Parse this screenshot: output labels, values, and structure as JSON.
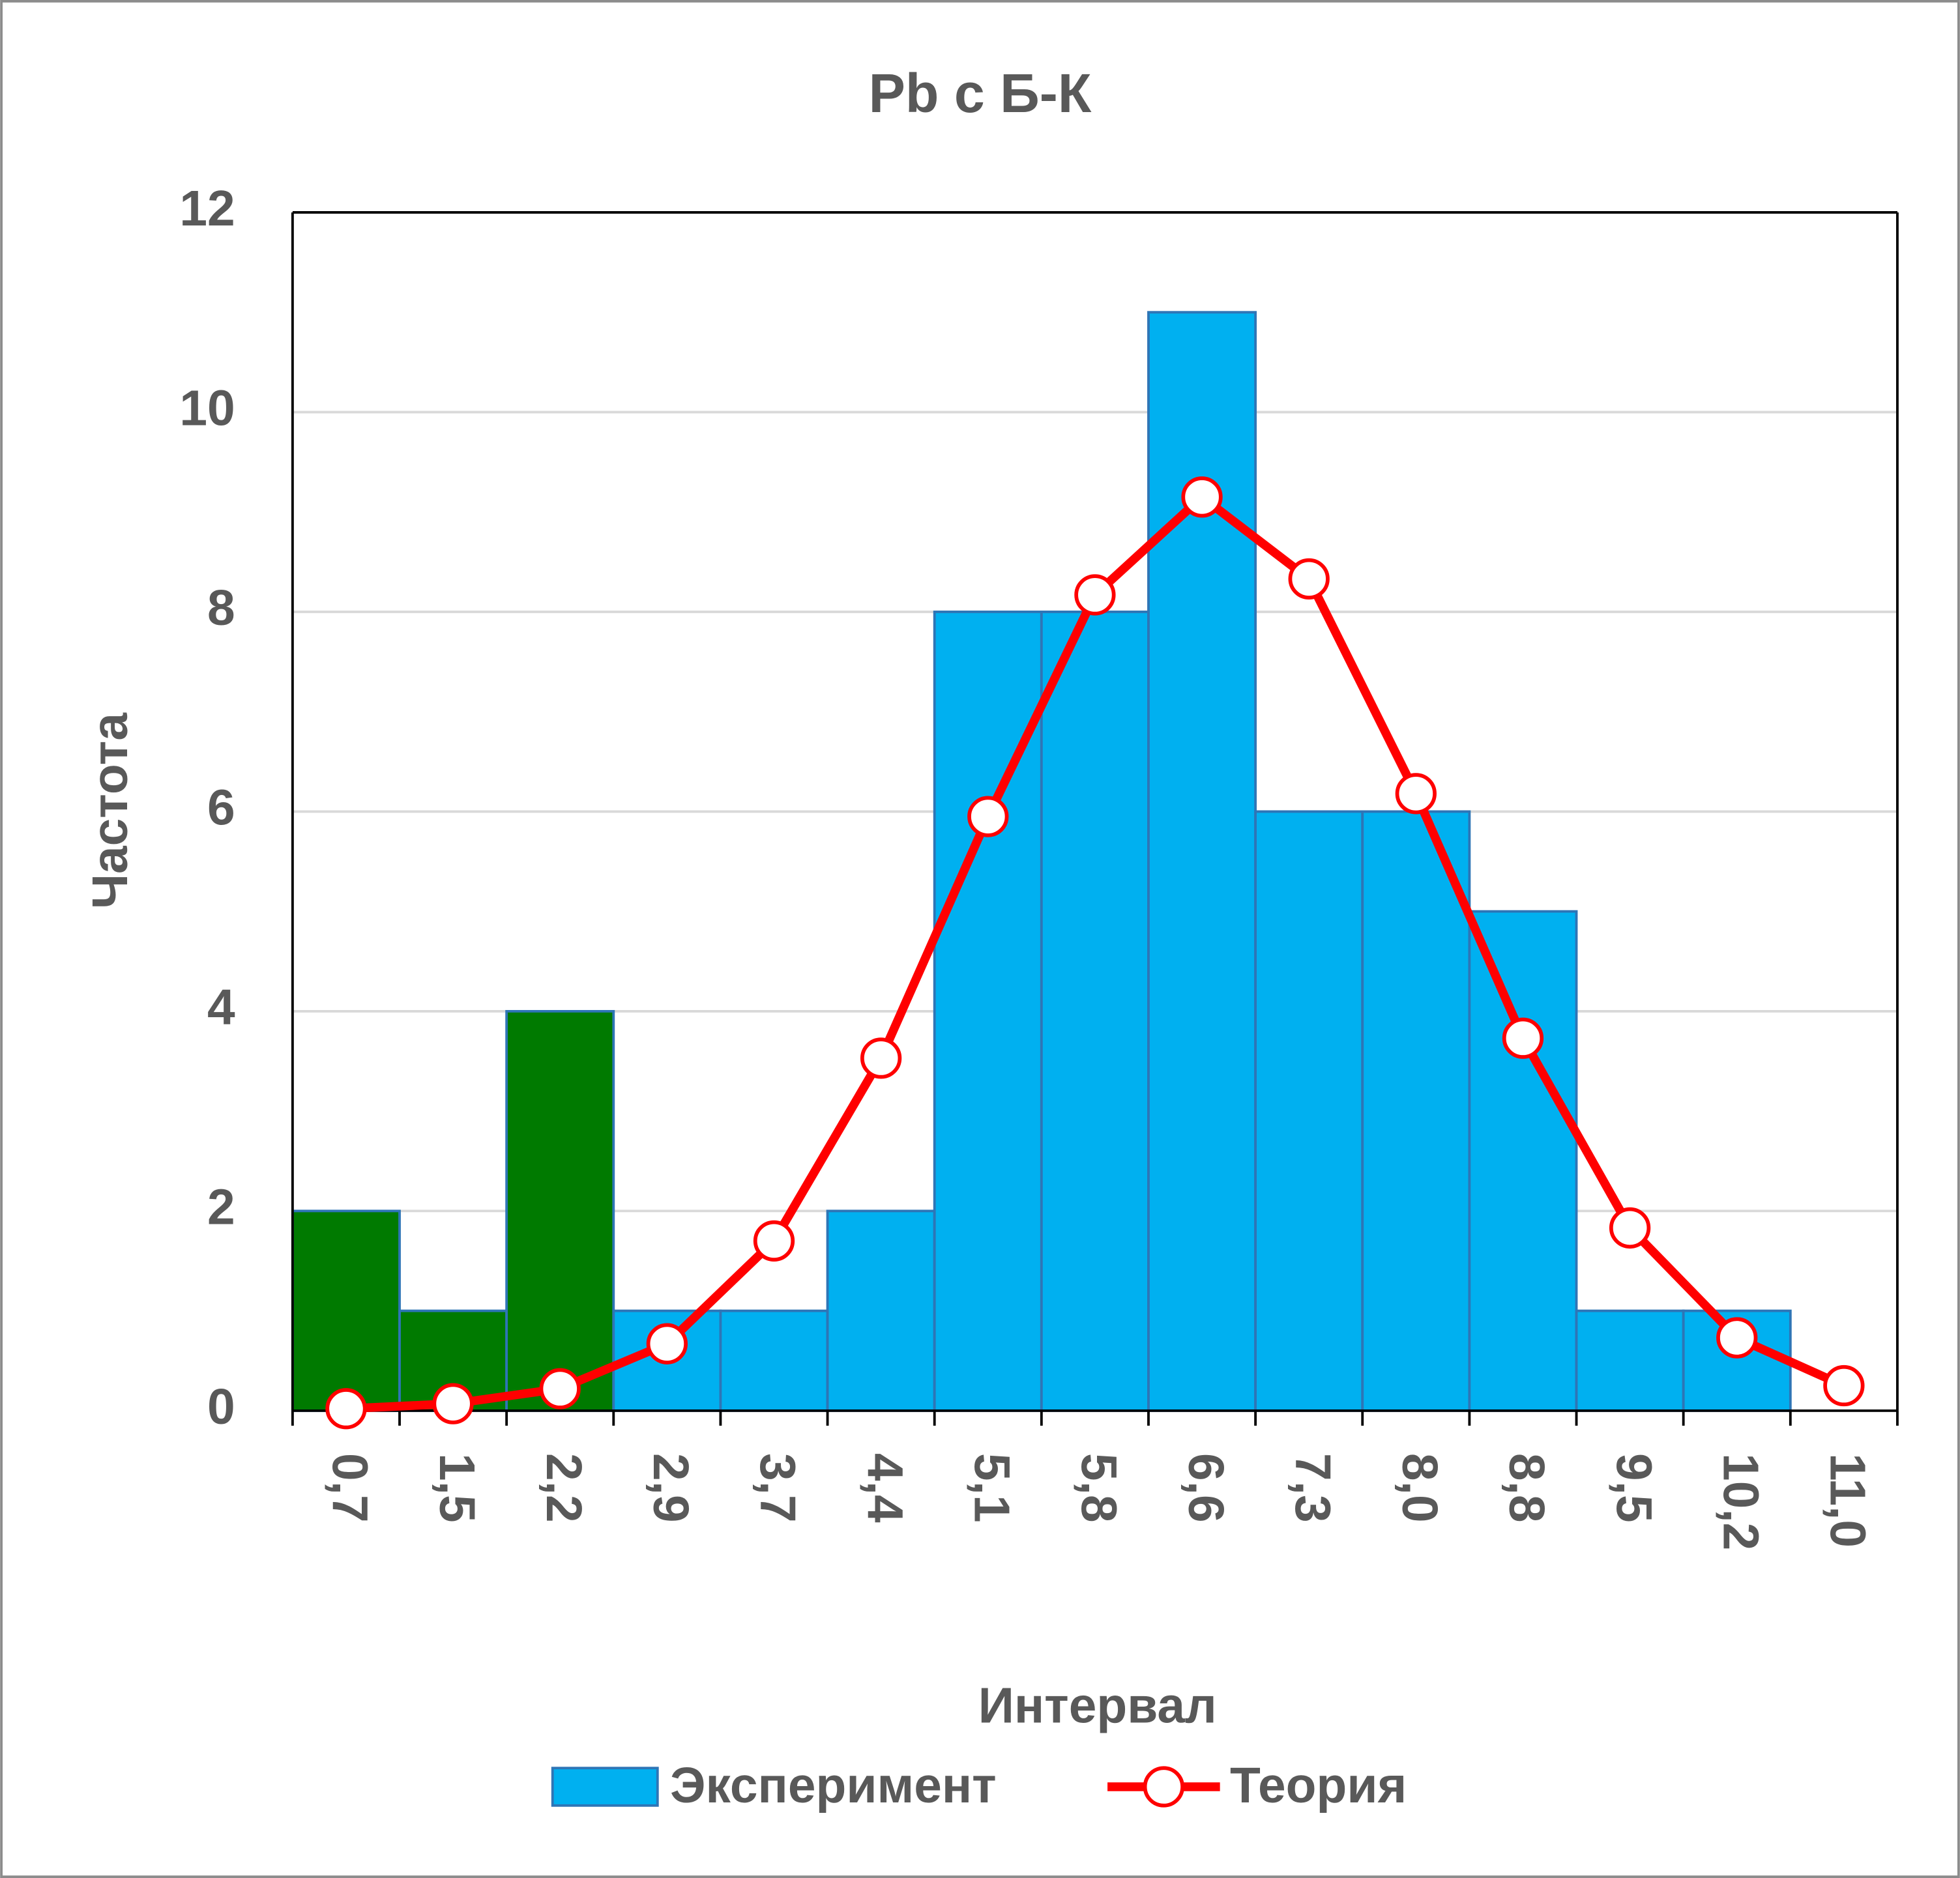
{
  "chart_data": {
    "type": "bar+line",
    "title": "Pb с Б-К",
    "x_label": "Интервал",
    "y_label": "Частота",
    "categories": [
      "0,7",
      "1,5",
      "2,2",
      "2,9",
      "3,7",
      "4,4",
      "5,1",
      "5,8",
      "6,6",
      "7,3",
      "8,0",
      "8,8",
      "9,5",
      "10,2",
      "11,0"
    ],
    "series": [
      {
        "name": "Эксперимент",
        "type": "bar",
        "color": "#00b0f0",
        "edgecolor": "#2e75b6",
        "colors": [
          "#007a00",
          "#007a00",
          "#007a00",
          "#00b0f0",
          "#00b0f0",
          "#00b0f0",
          "#00b0f0",
          "#00b0f0",
          "#00b0f0",
          "#00b0f0",
          "#00b0f0",
          "#00b0f0",
          "#00b0f0",
          "#00b0f0",
          "#00b0f0"
        ],
        "values": [
          2,
          1,
          4,
          1,
          1,
          2,
          8,
          8,
          11,
          6,
          6,
          5,
          1,
          1,
          null
        ]
      },
      {
        "name": "Теория",
        "type": "line",
        "color": "#ff0000",
        "values": [
          0.02,
          0.07,
          0.22,
          0.67,
          1.7,
          3.53,
          5.95,
          8.17,
          9.15,
          8.33,
          6.18,
          3.73,
          1.83,
          0.73,
          0.25
        ]
      }
    ],
    "ylim": [
      0,
      12
    ],
    "yticks": [
      0,
      2,
      4,
      6,
      8,
      10,
      12
    ],
    "grid": true,
    "legend": "bottom"
  }
}
